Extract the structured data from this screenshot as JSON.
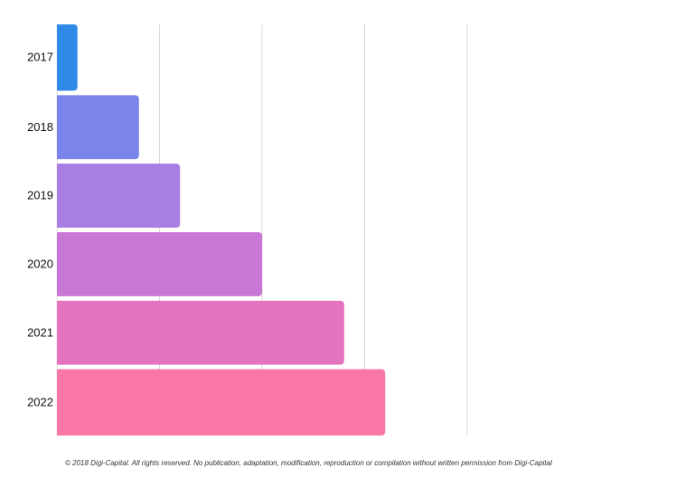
{
  "chart_data": {
    "type": "bar",
    "orientation": "horizontal",
    "categories": [
      "2017",
      "2018",
      "2019",
      "2020",
      "2021",
      "2022"
    ],
    "values": [
      0.2,
      0.8,
      1.2,
      2.0,
      2.8,
      3.2
    ],
    "xlim": [
      0,
      4
    ],
    "x_gridlines": [
      1,
      2,
      3,
      4
    ],
    "grid": true,
    "legend": "none",
    "colors": [
      "#2e8ae6",
      "#7b84ea",
      "#a87ee3",
      "#c977d6",
      "#e574c0",
      "#f877a6"
    ]
  },
  "footer": {
    "copyright": "© 2018 Digi-Capital. All rights reserved. No publication, adaptation, modification, reproduction or compilation without written permission from Digi-Capital"
  }
}
